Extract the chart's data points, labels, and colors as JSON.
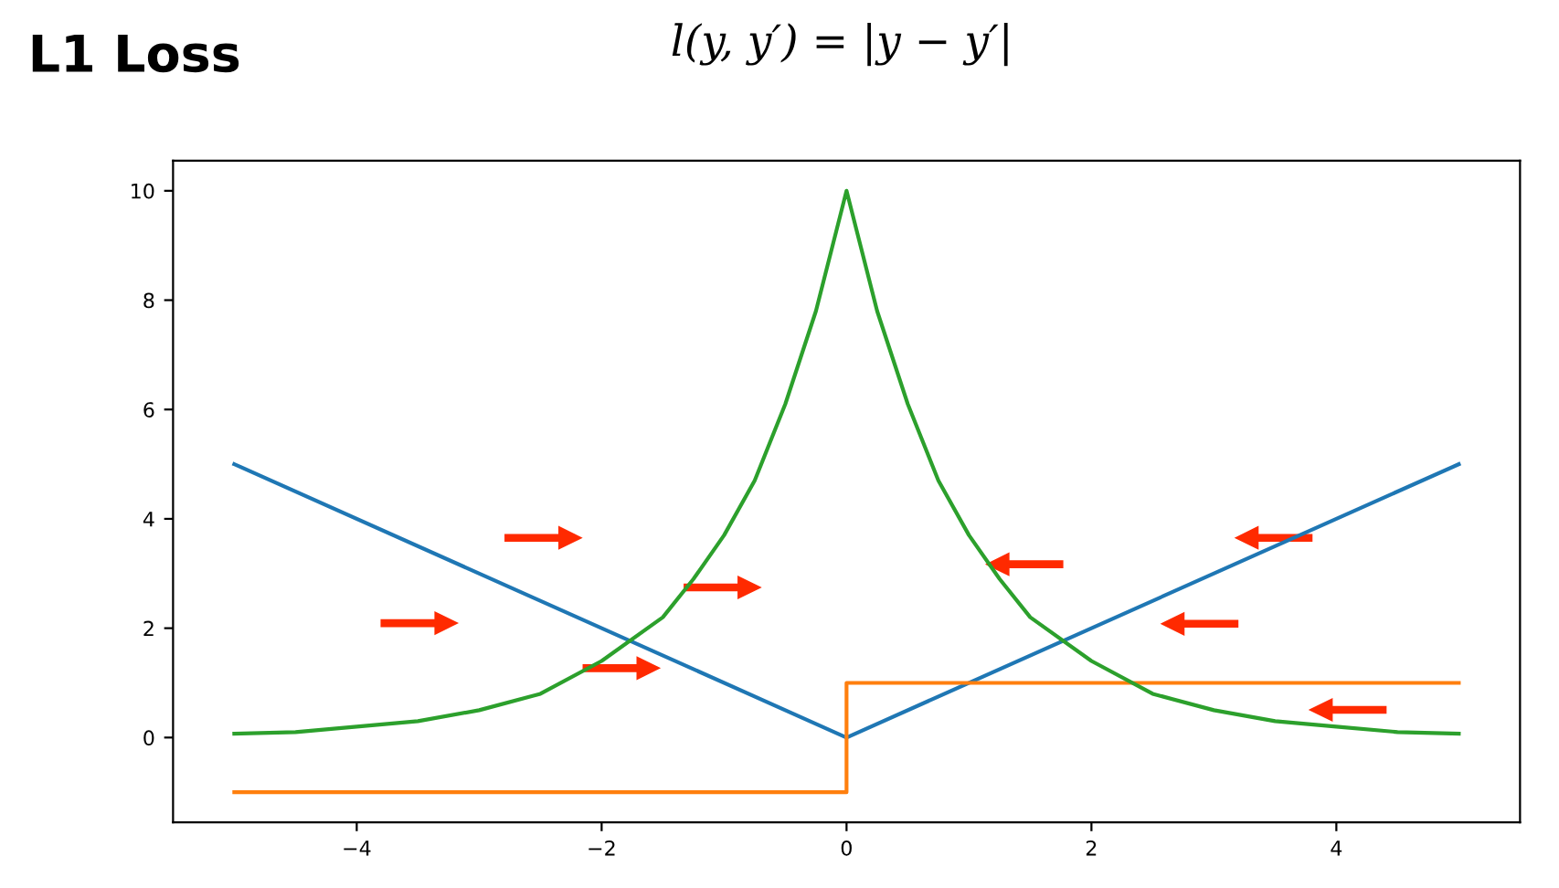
{
  "chart_data": {
    "type": "line",
    "title": "L1 Loss",
    "subtitle": "l(y, y′) = |y − y′|",
    "series": [
      {
        "color": "#1f77b4",
        "x": [
          -5,
          0,
          5
        ],
        "values": [
          5,
          0,
          5
        ]
      },
      {
        "color": "#ff7f0e",
        "x": [
          -5,
          0,
          0,
          5
        ],
        "values": [
          -1,
          -1,
          1,
          1
        ]
      },
      {
        "color": "#2ca02c",
        "x": [
          -5,
          -4.5,
          -4,
          -3.5,
          -3,
          -2.5,
          -2,
          -1.5,
          -1.25,
          -1,
          -0.75,
          -0.5,
          -0.25,
          0,
          0.25,
          0.5,
          0.75,
          1,
          1.25,
          1.5,
          2,
          2.5,
          3,
          3.5,
          4,
          4.5,
          5
        ],
        "values": [
          0.07,
          0.1,
          0.2,
          0.3,
          0.5,
          0.8,
          1.4,
          2.2,
          2.9,
          3.7,
          4.7,
          6.1,
          7.8,
          10,
          7.8,
          6.1,
          4.7,
          3.7,
          2.9,
          2.2,
          1.4,
          0.8,
          0.5,
          0.3,
          0.2,
          0.1,
          0.07
        ]
      }
    ],
    "xlim": [
      -5.5,
      5.5
    ],
    "xticks": [
      -4,
      -2,
      0,
      2,
      4
    ],
    "ylim": [
      -1.55,
      10.55
    ],
    "yticks": [
      0,
      2,
      4,
      6,
      8,
      10
    ],
    "grid": false,
    "marker": "none",
    "line_style": "solid"
  }
}
